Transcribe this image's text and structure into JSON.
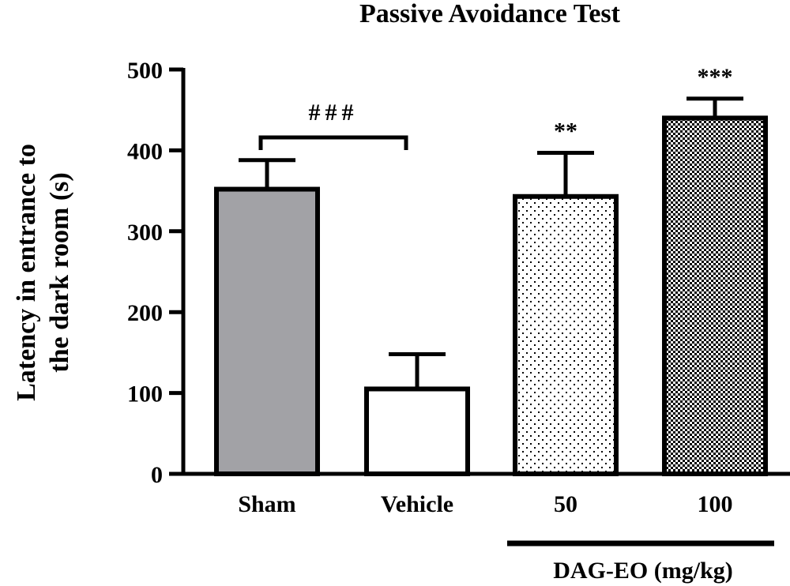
{
  "chart_data": {
    "type": "bar",
    "title": "Passive Avoidance Test",
    "ylabel_lines": [
      "Latency in entrance to",
      "the dark room (s)"
    ],
    "xlabel": "",
    "categories": [
      "Sham",
      "Vehicle",
      "50",
      "100"
    ],
    "values": [
      352,
      105,
      343,
      440
    ],
    "errors": [
      36,
      43,
      54,
      24
    ],
    "ylim": [
      0,
      500
    ],
    "yticks": [
      "0",
      "100",
      "200",
      "300",
      "400",
      "500"
    ],
    "grid": false,
    "bar_fills": [
      "gray",
      "white",
      "sparse-dots",
      "dense-checker"
    ],
    "significance": [
      "",
      "",
      "**",
      "***"
    ],
    "comparison": {
      "label": "###",
      "from": "Sham",
      "to": "Vehicle"
    },
    "group": {
      "label": "DAG-EO (mg/kg)",
      "members": [
        "50",
        "100"
      ]
    }
  },
  "colors": {
    "sham_fill": "#a2a2a6",
    "ink": "#000000",
    "background": "#ffffff"
  }
}
